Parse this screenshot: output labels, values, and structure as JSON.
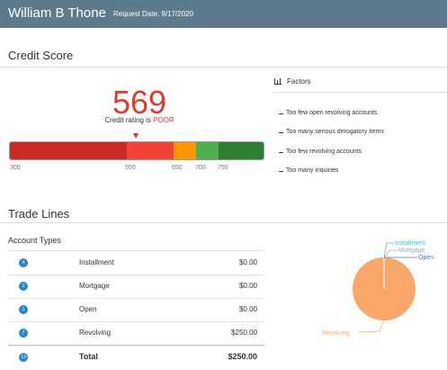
{
  "header": {
    "name": "William B Thone",
    "request_date": "Request Date: 9/17/2020"
  },
  "credit_score": {
    "title": "Credit Score",
    "score": "569",
    "rating_prefix": "Credit rating is",
    "rating": "POOR",
    "ticks": [
      "300",
      "550",
      "650",
      "700",
      "750"
    ],
    "colors": {
      "red": "#cc2a27",
      "light_red": "#f44336",
      "orange": "#ff9800",
      "green": "#4caf50",
      "dark_green": "#2e7d32"
    }
  },
  "factors": {
    "title": "Factors",
    "items": [
      "Too few open revolving accounts",
      "Too many serious derogatory items",
      "Too few revolving accounts",
      "Too many inquiries"
    ]
  },
  "trade_lines": {
    "title": "Trade Lines",
    "subtitle": "Account Types",
    "rows": [
      {
        "count": "4",
        "label": "Installment",
        "amount": "$0.00"
      },
      {
        "count": "1",
        "label": "Mortgage",
        "amount": "$0.00"
      },
      {
        "count": "1",
        "label": "Open",
        "amount": "$0.00"
      },
      {
        "count": "7",
        "label": "Revolving",
        "amount": "$250.00"
      }
    ],
    "total": {
      "count": "13",
      "label": "Total",
      "amount": "$250.00"
    }
  },
  "chart_data": {
    "type": "pie",
    "categories": [
      "Installment",
      "Mortgage",
      "Open",
      "Revolving"
    ],
    "values": [
      0,
      0,
      0,
      250
    ],
    "colors": [
      "#2ec4cf",
      "#9aa7b8",
      "#3b7be0",
      "#f9a76a"
    ]
  }
}
